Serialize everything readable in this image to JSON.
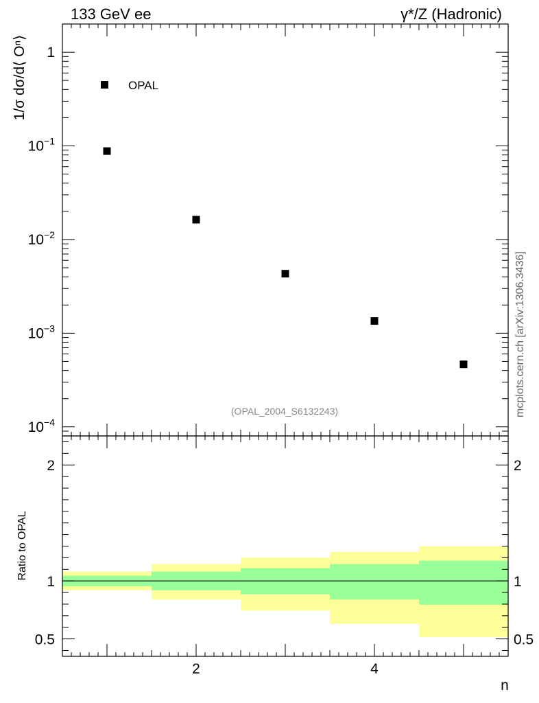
{
  "chart_data": {
    "type": "scatter",
    "header_left": "133 GeV ee",
    "header_right": "γ*/Z (Hadronic)",
    "ylabel": "1/σ dσ/d⟨ Oⁿ⟩",
    "xlabel": "n",
    "legend": {
      "entries": [
        "OPAL"
      ],
      "placement": "top-left"
    },
    "analysis_id": "(OPAL_2004_S6132243)",
    "credit": "mcplots.cern.ch [arXiv:1306.3436]",
    "x": [
      1,
      2,
      3,
      4,
      5
    ],
    "series": [
      {
        "name": "OPAL",
        "values": [
          0.088,
          0.0163,
          0.00432,
          0.00135,
          0.000465
        ]
      }
    ],
    "xlim": [
      0.5,
      5.5
    ],
    "ylim": [
      8e-05,
      2.0
    ],
    "yscale": "log",
    "y_tick_labels": [
      {
        "value": 1,
        "base": "1",
        "exp": ""
      },
      {
        "value": 0.1,
        "base": "10",
        "exp": "−1"
      },
      {
        "value": 0.01,
        "base": "10",
        "exp": "−2"
      },
      {
        "value": 0.001,
        "base": "10",
        "exp": "−3"
      },
      {
        "value": 0.0001,
        "base": "10",
        "exp": "−4"
      }
    ],
    "ratio": {
      "ylabel": "Ratio to OPAL",
      "ylim": [
        0.35,
        2.25
      ],
      "y_tick_labels": [
        "2",
        "1",
        "0.5"
      ],
      "y_tick_values": [
        2,
        1,
        0.5
      ],
      "reference_line": 1,
      "bins": [
        {
          "lo": 0.5,
          "hi": 1.5,
          "inner": [
            0.955,
            1.045
          ],
          "outer": [
            0.92,
            1.08
          ]
        },
        {
          "lo": 1.5,
          "hi": 2.5,
          "inner": [
            0.92,
            1.08
          ],
          "outer": [
            0.84,
            1.145
          ]
        },
        {
          "lo": 2.5,
          "hi": 3.5,
          "inner": [
            0.885,
            1.11
          ],
          "outer": [
            0.745,
            1.2
          ]
        },
        {
          "lo": 3.5,
          "hi": 4.5,
          "inner": [
            0.84,
            1.145
          ],
          "outer": [
            0.63,
            1.25
          ]
        },
        {
          "lo": 4.5,
          "hi": 5.5,
          "inner": [
            0.795,
            1.175
          ],
          "outer": [
            0.515,
            1.3
          ]
        }
      ]
    },
    "x_tick_labels": [
      "2",
      "4"
    ],
    "x_tick_values": [
      2,
      4
    ],
    "colors": {
      "inner_band": "#99ff99",
      "outer_band": "#ffff99",
      "marker": "#000000",
      "note": "#888888",
      "credit": "#666666"
    }
  }
}
